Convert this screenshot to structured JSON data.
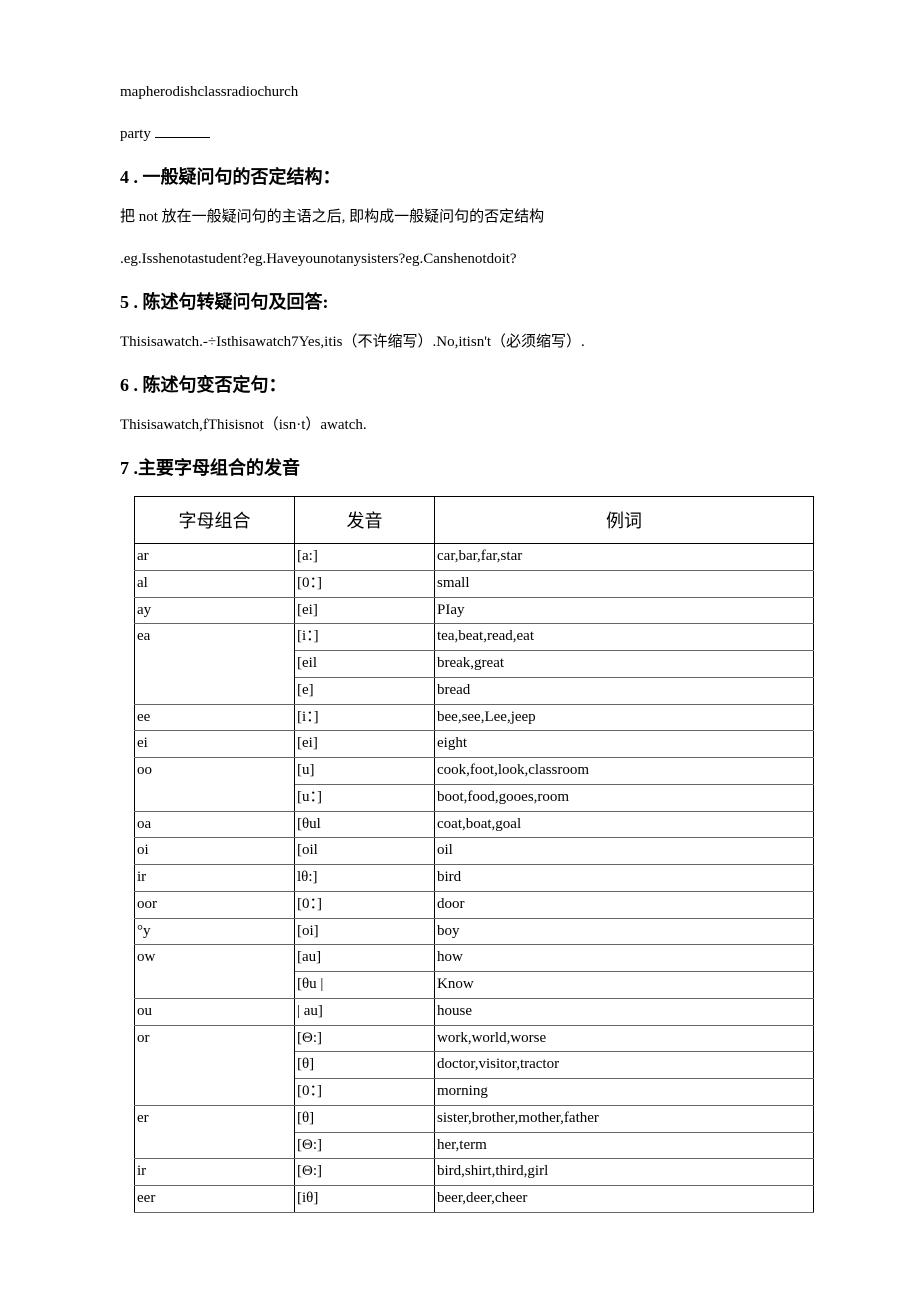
{
  "top_line1": "mapherodishclassradiochurch",
  "top_line2_prefix": "party ",
  "sec4": {
    "num": "4",
    "title": " . 一般疑问句的否定结构：",
    "body1": "把 not 放在一般疑问句的主语之后, 即构成一般疑问句的否定结构",
    "body2": ".eg.Isshenotastudent?eg.Haveyounotanysisters?eg.Canshenotdoit?"
  },
  "sec5": {
    "num": "5",
    "title": " . 陈述句转疑问句及回答:",
    "body": "Thisisawatch.-÷Isthisawatch7Yes,itis（不许缩写）.No,itisn't（必须缩写）."
  },
  "sec6": {
    "num": "6",
    "title": " . 陈述句变否定句：",
    "body": "Thisisawatch,fThisisnot（isn·t）awatch."
  },
  "sec7": {
    "num": "7",
    "title": " .主要字母组合的发音"
  },
  "table": {
    "headers": [
      "字母组合",
      "发音",
      "例词"
    ],
    "rows": [
      {
        "c1": "ar",
        "c2": "[a:]",
        "c3": "car,bar,far,star"
      },
      {
        "c1": "al",
        "c2": "[0：]",
        "c3": "small"
      },
      {
        "c1": "ay",
        "c2": "[ei]",
        "c3": "PIay"
      },
      {
        "c1": "ea",
        "c2": "[i：]",
        "c3": "tea,beat,read,eat",
        "rs": 3
      },
      {
        "c2": "[eil",
        "c3": "break,great"
      },
      {
        "c2": "[e]",
        "c3": "bread"
      },
      {
        "c1": "ee",
        "c2": "[i：]",
        "c3": "bee,see,Lee,jeep"
      },
      {
        "c1": "ei",
        "c2": "[ei]",
        "c3": "eight"
      },
      {
        "c1": "oo",
        "c2": "[u]",
        "c3": "cook,foot,look,classroom",
        "rs": 2
      },
      {
        "c2": "[u：]",
        "c3": "boot,food,gooes,room"
      },
      {
        "c1": "oa",
        "c2": "[θul",
        "c3": "coat,boat,goal"
      },
      {
        "c1": "oi",
        "c2": "[oil",
        "c3": "oil"
      },
      {
        "c1": "ir",
        "c2": "lθ:]",
        "c3": "bird"
      },
      {
        "c1": "oor",
        "c2": "[0：]",
        "c3": "door"
      },
      {
        "c1": "°y",
        "c2": "[oi]",
        "c3": "boy"
      },
      {
        "c1": "ow",
        "c2": "[au]",
        "c3": "how",
        "rs": 2
      },
      {
        "c2": "[θu |",
        "c3": "Know"
      },
      {
        "c1": "ou",
        "c2": "| au]",
        "c3": "house"
      },
      {
        "c1": "or",
        "c2": "[Θ:]",
        "c3": "work,world,worse",
        "rs": 3
      },
      {
        "c2": "[θ]",
        "c3": "doctor,visitor,tractor"
      },
      {
        "c2": "[0：]",
        "c3": "morning"
      },
      {
        "c1": "er",
        "c2": "[θ]",
        "c3": "sister,brother,mother,father",
        "rs": 2
      },
      {
        "c2": "[Θ:]",
        "c3": "her,term"
      },
      {
        "c1": "ir",
        "c2": "[Θ:]",
        "c3": "bird,shirt,third,girl"
      },
      {
        "c1": "eer",
        "c2": "[iθ]",
        "c3": "beer,deer,cheer"
      }
    ]
  }
}
